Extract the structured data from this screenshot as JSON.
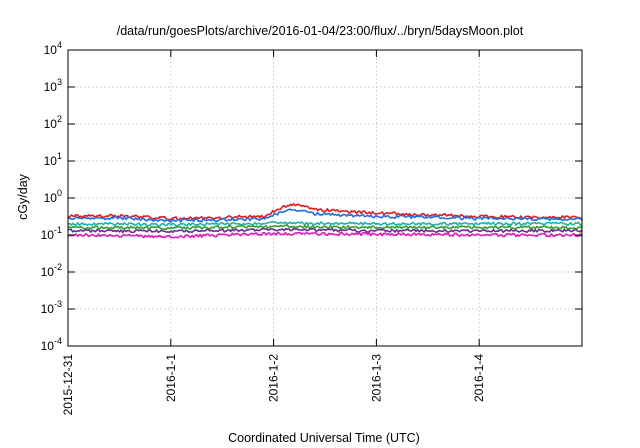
{
  "chart_data": {
    "type": "line",
    "title": "/data/run/goesPlots/archive/2016-01-04/23:00/flux/../bryn/5daysMoon.plot",
    "xlabel": "Coordinated Universal Time (UTC)",
    "ylabel": "cGy/day",
    "yscale": "log",
    "ylim": [
      0.0001,
      10000
    ],
    "xlim": [
      0,
      5
    ],
    "y_ticks": [
      {
        "base": "10",
        "exp": "-4",
        "value": 0.0001
      },
      {
        "base": "10",
        "exp": "-3",
        "value": 0.001
      },
      {
        "base": "10",
        "exp": "-2",
        "value": 0.01
      },
      {
        "base": "10",
        "exp": "-1",
        "value": 0.1
      },
      {
        "base": "10",
        "exp": "0",
        "value": 1
      },
      {
        "base": "10",
        "exp": "1",
        "value": 10
      },
      {
        "base": "10",
        "exp": "2",
        "value": 100
      },
      {
        "base": "10",
        "exp": "3",
        "value": 1000
      },
      {
        "base": "10",
        "exp": "4",
        "value": 10000
      }
    ],
    "x_ticks": [
      {
        "label": "2015-12-31",
        "value": 0
      },
      {
        "label": "2016-1-1",
        "value": 1
      },
      {
        "label": "2016-1-2",
        "value": 2
      },
      {
        "label": "2016-1-3",
        "value": 3
      },
      {
        "label": "2016-1-4",
        "value": 4
      }
    ],
    "grid": true,
    "series": [
      {
        "color": "#e41a1c",
        "x": [
          0,
          0.5,
          1,
          1.5,
          1.9,
          2.1,
          2.2,
          2.4,
          2.7,
          3,
          3.5,
          4,
          4.5,
          5
        ],
        "y": [
          0.32,
          0.33,
          0.28,
          0.3,
          0.32,
          0.6,
          0.65,
          0.5,
          0.42,
          0.4,
          0.35,
          0.32,
          0.3,
          0.3
        ]
      },
      {
        "color": "#1f6fe0",
        "x": [
          0,
          0.5,
          1,
          1.5,
          1.9,
          2.1,
          2.2,
          2.4,
          2.7,
          3,
          3.5,
          4,
          4.5,
          5
        ],
        "y": [
          0.28,
          0.29,
          0.24,
          0.26,
          0.27,
          0.45,
          0.48,
          0.38,
          0.34,
          0.32,
          0.3,
          0.28,
          0.27,
          0.27
        ]
      },
      {
        "color": "#19b5a6",
        "x": [
          0,
          1,
          2,
          3,
          4,
          5
        ],
        "y": [
          0.2,
          0.19,
          0.21,
          0.2,
          0.2,
          0.2
        ]
      },
      {
        "color": "#33a02c",
        "x": [
          0,
          1,
          2,
          3,
          4,
          5
        ],
        "y": [
          0.16,
          0.155,
          0.17,
          0.16,
          0.16,
          0.16
        ]
      },
      {
        "color": "#6a2c9a",
        "x": [
          0,
          1,
          2,
          3,
          4,
          5
        ],
        "y": [
          0.13,
          0.125,
          0.14,
          0.13,
          0.13,
          0.13
        ]
      },
      {
        "color": "#e01ab5",
        "x": [
          0,
          1,
          2,
          3,
          4,
          5
        ],
        "y": [
          0.1,
          0.09,
          0.11,
          0.105,
          0.1,
          0.1
        ]
      }
    ]
  }
}
